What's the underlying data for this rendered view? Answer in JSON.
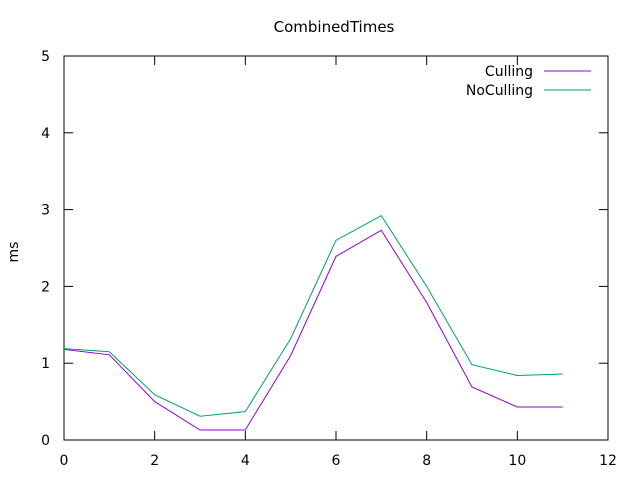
{
  "chart_data": {
    "type": "line",
    "title": "CombinedTimes",
    "xlabel": "",
    "ylabel": "ms",
    "xlim": [
      0,
      12
    ],
    "ylim": [
      0,
      5
    ],
    "x_ticks": [
      0,
      2,
      4,
      6,
      8,
      10,
      12
    ],
    "y_ticks": [
      0,
      1,
      2,
      3,
      4,
      5
    ],
    "grid": false,
    "legend_position": "top-right",
    "series": [
      {
        "name": "Culling",
        "color": "#9400d3",
        "x": [
          0,
          1,
          2,
          3,
          4,
          5,
          6,
          7,
          8,
          9,
          10,
          11
        ],
        "y": [
          1.18,
          1.11,
          0.5,
          0.13,
          0.13,
          1.1,
          2.39,
          2.73,
          1.79,
          0.69,
          0.43,
          0.43
        ]
      },
      {
        "name": "NoCulling",
        "color": "#009e73",
        "x": [
          0,
          1,
          2,
          3,
          4,
          5,
          6,
          7,
          8,
          9,
          10,
          11
        ],
        "y": [
          1.19,
          1.15,
          0.59,
          0.31,
          0.37,
          1.32,
          2.6,
          2.92,
          2.0,
          0.98,
          0.84,
          0.86
        ]
      }
    ]
  }
}
